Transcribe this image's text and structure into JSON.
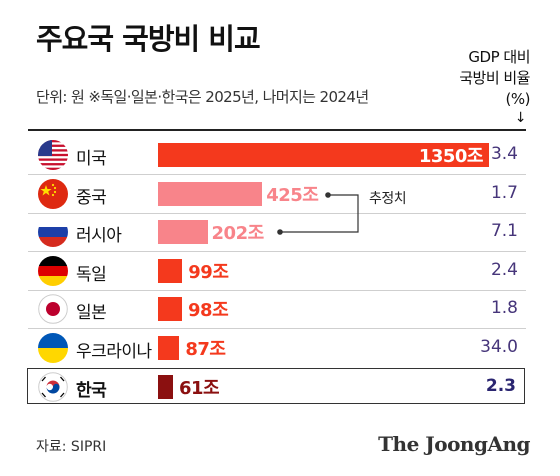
{
  "title": "주요국 국방비 비교",
  "subtitle": "단위: 원  ※독일·일본·한국은 2025년, 나머지는 2024년",
  "column_header": {
    "line1": "GDP 대비",
    "line2": "국방비 비율",
    "unit": "(%)",
    "arrow": "↓"
  },
  "annotation": "추정치",
  "source": "자료: SIPRI",
  "logo": "The JoongAng",
  "colors": {
    "main": "#f4391d",
    "estimate": "#f8848a",
    "korea": "#8b1010",
    "ratio": "#46357a"
  },
  "chart_data": {
    "type": "bar",
    "orientation": "horizontal",
    "title": "주요국 국방비 비교",
    "unit": "조 원",
    "categories": [
      "미국",
      "중국",
      "러시아",
      "독일",
      "일본",
      "우크라이나",
      "한국"
    ],
    "flags": [
      "us-flag-icon",
      "china-flag-icon",
      "russia-flag-icon",
      "germany-flag-icon",
      "japan-flag-icon",
      "ukraine-flag-icon",
      "korea-flag-icon"
    ],
    "values": [
      1350,
      425,
      202,
      99,
      98,
      87,
      61
    ],
    "value_labels": [
      "1350조",
      "425조",
      "202조",
      "99조",
      "98조",
      "87조",
      "61조"
    ],
    "estimated": [
      false,
      true,
      true,
      false,
      false,
      false,
      false
    ],
    "gdp_ratio_pct": [
      "3.4",
      "1.7",
      "7.1",
      "2.4",
      "1.8",
      "34.0",
      "2.3"
    ],
    "highlight": "한국",
    "xlim": [
      0,
      1350
    ]
  }
}
